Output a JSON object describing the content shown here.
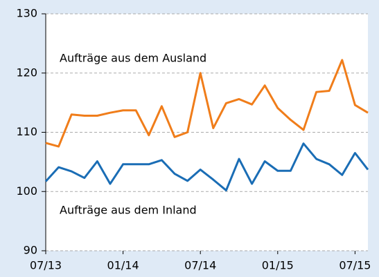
{
  "chart_data": {
    "type": "line",
    "categories": [
      "07/13",
      null,
      null,
      null,
      null,
      null,
      "01/14",
      null,
      null,
      null,
      null,
      null,
      "07/14",
      null,
      null,
      null,
      null,
      null,
      "01/15",
      null,
      null,
      null,
      null,
      null,
      "07/15",
      null
    ],
    "series": [
      {
        "name": "Aufträge aus dem Ausland",
        "color": "#f07d1a",
        "values": [
          108.2,
          107.6,
          113,
          112.8,
          112.8,
          113.3,
          113.7,
          113.7,
          109.5,
          114.4,
          109.2,
          110,
          120,
          110.7,
          114.9,
          115.6,
          114.7,
          117.9,
          114.1,
          112.1,
          110.4,
          116.8,
          117,
          122.2,
          114.6,
          113.3
        ]
      },
      {
        "name": "Aufträge aus dem Inland",
        "color": "#1a6db5",
        "values": [
          101.7,
          104.1,
          103.4,
          102.3,
          105.1,
          101.3,
          104.6,
          104.6,
          104.6,
          105.3,
          103,
          101.8,
          103.7,
          102,
          100.2,
          105.5,
          101.3,
          105.1,
          103.5,
          103.5,
          108.1,
          105.5,
          104.6,
          102.8,
          106.5,
          103.7
        ]
      }
    ],
    "ylim": [
      90,
      130
    ],
    "yticks": [
      90,
      100,
      110,
      120,
      130
    ],
    "grid": true
  }
}
